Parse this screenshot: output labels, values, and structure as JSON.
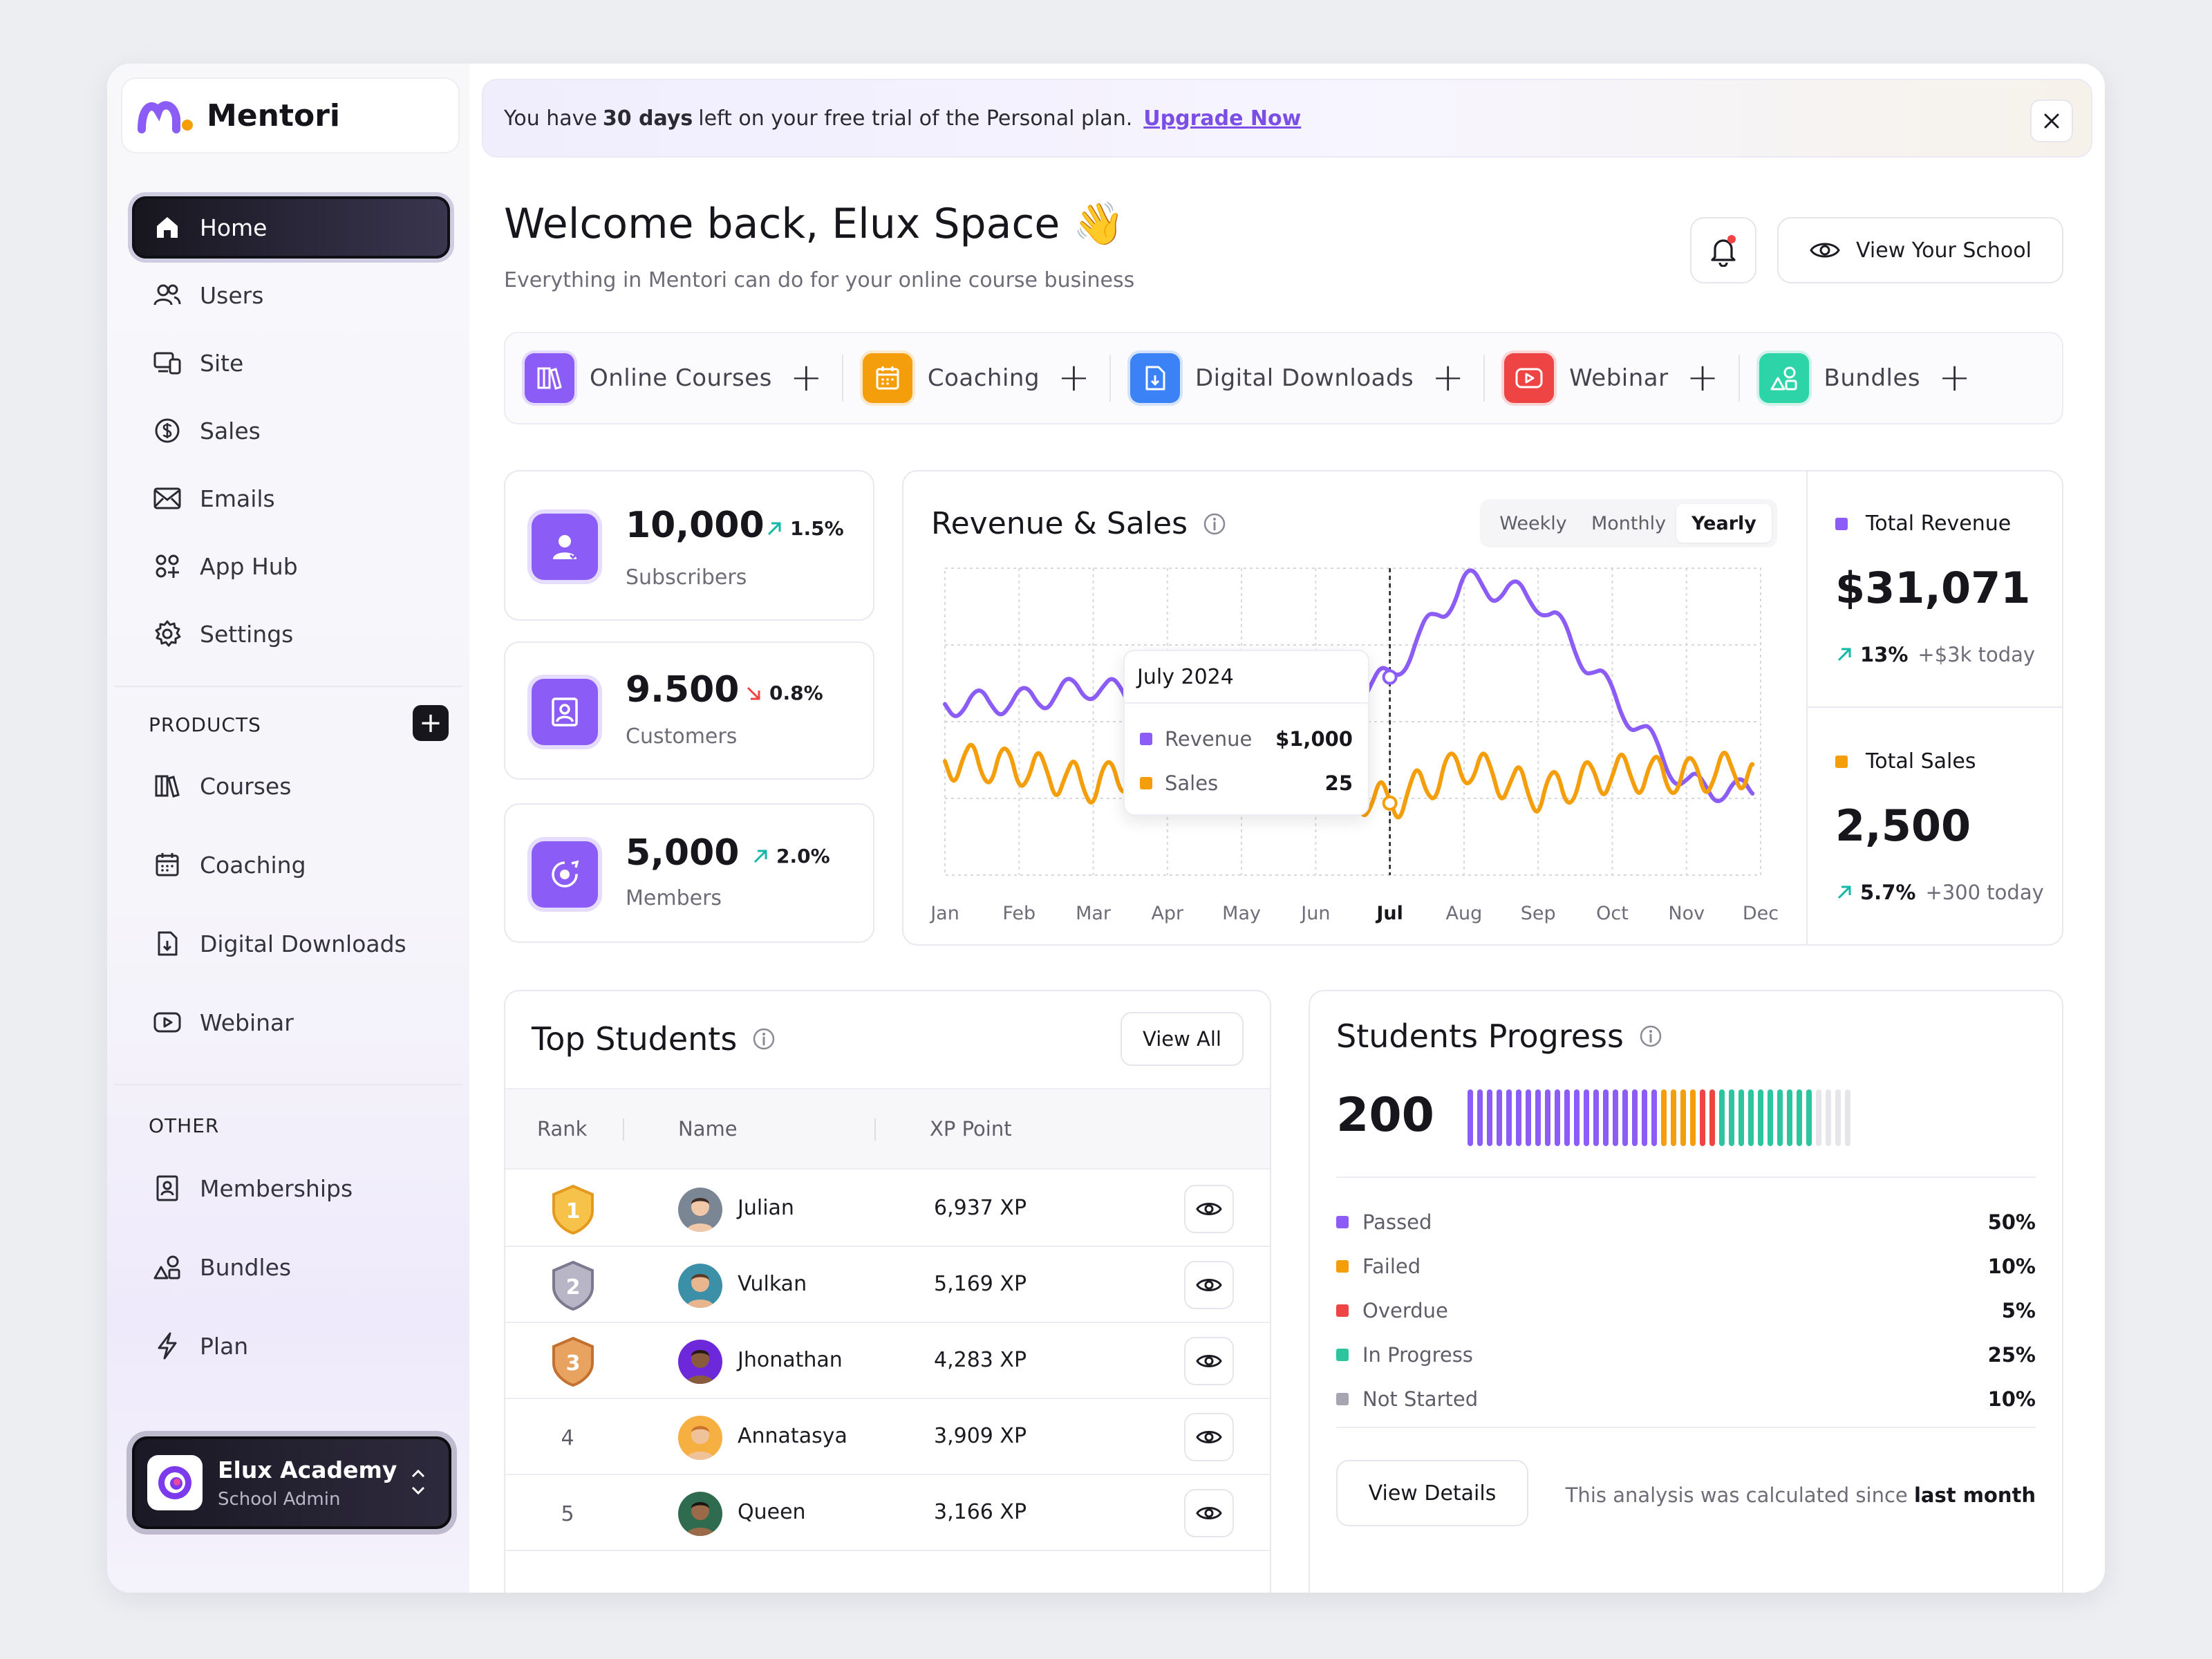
{
  "brand": {
    "name": "Mentori"
  },
  "sidebar": {
    "nav": [
      {
        "label": "Home",
        "icon": "home-icon",
        "active": true
      },
      {
        "label": "Users",
        "icon": "users-icon"
      },
      {
        "label": "Site",
        "icon": "devices-icon"
      },
      {
        "label": "Sales",
        "icon": "dollar-icon"
      },
      {
        "label": "Emails",
        "icon": "mail-icon"
      },
      {
        "label": "App Hub",
        "icon": "apps-icon"
      },
      {
        "label": "Settings",
        "icon": "gear-icon"
      }
    ],
    "products_label": "PRODUCTS",
    "products": [
      {
        "label": "Courses",
        "icon": "books-icon"
      },
      {
        "label": "Coaching",
        "icon": "calendar-icon"
      },
      {
        "label": "Digital Downloads",
        "icon": "file-download-icon"
      },
      {
        "label": "Webinar",
        "icon": "video-icon"
      }
    ],
    "other_label": "OTHER",
    "other": [
      {
        "label": "Memberships",
        "icon": "id-card-icon"
      },
      {
        "label": "Bundles",
        "icon": "shapes-icon"
      },
      {
        "label": "Plan",
        "icon": "bolt-icon"
      }
    ],
    "account": {
      "name": "Elux Academy",
      "role": "School Admin"
    }
  },
  "banner": {
    "prefix": "You have",
    "bold": "30 days",
    "suffix": "left on your free trial of the Personal plan.",
    "link": "Upgrade Now"
  },
  "header": {
    "title": "Welcome back, Elux Space",
    "emoji": "👋",
    "subtitle": "Everything in Mentori can do for your online course business",
    "view_school": "View Your School"
  },
  "quick_actions": [
    {
      "label": "Online Courses",
      "color": "#8b5cf6",
      "icon": "books-icon"
    },
    {
      "label": "Coaching",
      "color": "#f59e0b",
      "icon": "calendar-icon"
    },
    {
      "label": "Digital Downloads",
      "color": "#3b82f6",
      "icon": "file-download-icon"
    },
    {
      "label": "Webinar",
      "color": "#ef4444",
      "icon": "video-icon"
    },
    {
      "label": "Bundles",
      "color": "#2dd4a7",
      "icon": "shapes-icon"
    }
  ],
  "stats": [
    {
      "value": "10,000",
      "change": "1.5%",
      "direction": "up",
      "label": "Subscribers",
      "icon": "user-check-icon"
    },
    {
      "value": "9.500",
      "change": "0.8%",
      "direction": "down",
      "label": "Customers",
      "icon": "portrait-icon"
    },
    {
      "value": "5,000",
      "change": "2.0%",
      "direction": "up",
      "label": "Members",
      "icon": "target-user-icon"
    }
  ],
  "revenue_chart": {
    "title": "Revenue & Sales",
    "periods": [
      "Weekly",
      "Monthly",
      "Yearly"
    ],
    "selected_period": "Yearly",
    "tooltip": {
      "title": "July 2024",
      "revenue_label": "Revenue",
      "revenue_value": "$1,000",
      "sales_label": "Sales",
      "sales_value": "25"
    }
  },
  "chart_data": {
    "type": "line",
    "x": [
      "Jan",
      "Feb",
      "Mar",
      "Apr",
      "May",
      "Jun",
      "Jul",
      "Aug",
      "Sep",
      "Oct",
      "Nov",
      "Dec"
    ],
    "highlight": "Jul",
    "series": [
      {
        "name": "Revenue",
        "color": "#8b5cf6",
        "values": [
          570,
          580,
          630,
          560,
          530,
          550,
          660,
          980,
          920,
          600,
          300,
          270
        ]
      },
      {
        "name": "Sales",
        "color": "#f59e0b",
        "values": [
          380,
          360,
          300,
          390,
          330,
          300,
          240,
          370,
          270,
          340,
          330,
          360
        ]
      }
    ],
    "grid": true
  },
  "totals": {
    "revenue": {
      "label": "Total Revenue",
      "value": "$31,071",
      "change": "13%",
      "note": "+$3k today",
      "color": "#8b5cf6"
    },
    "sales": {
      "label": "Total Sales",
      "value": "2,500",
      "change": "5.7%",
      "note": "+300 today",
      "color": "#f59e0b"
    }
  },
  "top_students": {
    "title": "Top Students",
    "view_all": "View All",
    "columns": [
      "Rank",
      "Name",
      "XP Point"
    ],
    "rows": [
      {
        "rank": "1",
        "name": "Julian",
        "xp": "6,937 XP",
        "medal": "gold"
      },
      {
        "rank": "2",
        "name": "Vulkan",
        "xp": "5,169 XP",
        "medal": "silver"
      },
      {
        "rank": "3",
        "name": "Jhonathan",
        "xp": "4,283 XP",
        "medal": "bronze"
      },
      {
        "rank": "4",
        "name": "Annatasya",
        "xp": "3,909 XP",
        "medal": ""
      },
      {
        "rank": "5",
        "name": "Queen",
        "xp": "3,166 XP",
        "medal": ""
      }
    ]
  },
  "progress": {
    "title": "Students Progress",
    "total": "200",
    "legend": [
      {
        "label": "Passed",
        "pct": "50%",
        "color": "#8b5cf6",
        "bars": 20
      },
      {
        "label": "Failed",
        "pct": "10%",
        "color": "#f59e0b",
        "bars": 4
      },
      {
        "label": "Overdue",
        "pct": "5%",
        "color": "#ef4444",
        "bars": 2
      },
      {
        "label": "In Progress",
        "pct": "25%",
        "color": "#2dc5a0",
        "bars": 10
      },
      {
        "label": "Not Started",
        "pct": "10%",
        "color": "#e5e5ea",
        "bars": 4
      }
    ],
    "view_details": "View Details",
    "note_prefix": "This analysis was calculated since",
    "note_bold": "last month"
  }
}
